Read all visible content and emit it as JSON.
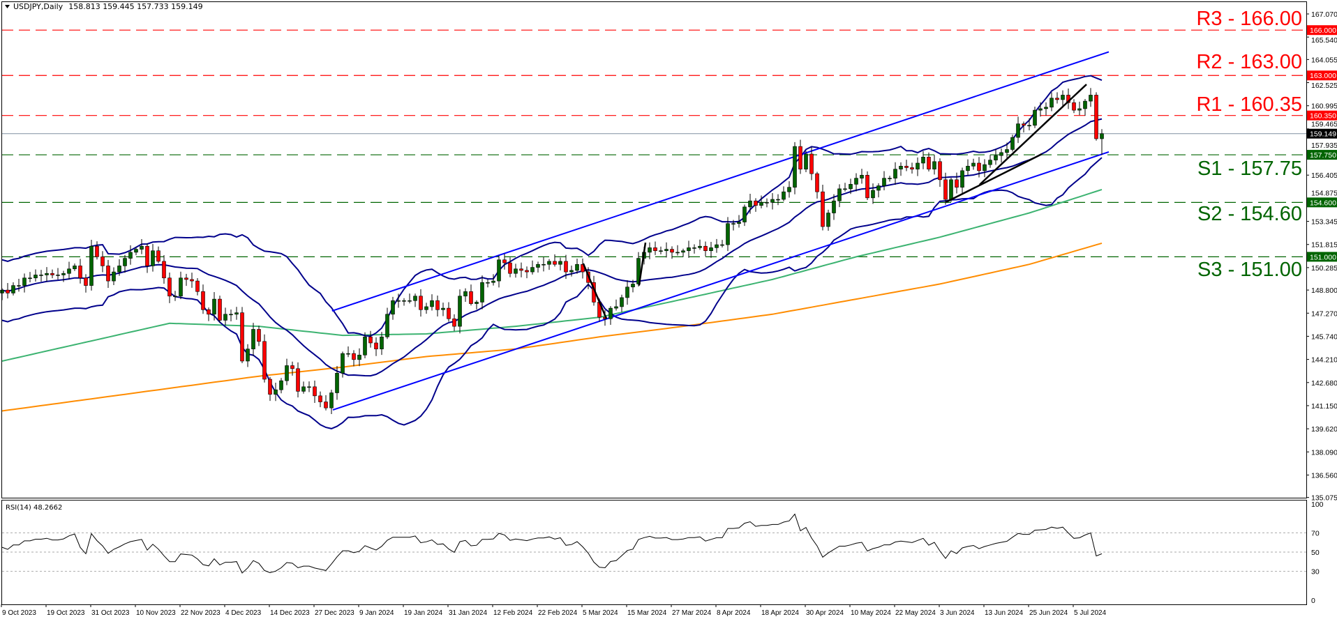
{
  "header": {
    "symbol": "USDJPY,Daily",
    "ohlc": "158.813 159.445 157.733 159.149",
    "menu_icon": "triangle-down-icon"
  },
  "rsi_panel": {
    "label": "RSI(14) 48.2662",
    "levels": [
      30,
      50,
      70
    ],
    "ticks": [
      "100",
      "70",
      "50",
      "30",
      "0"
    ]
  },
  "colors": {
    "up": "#006400",
    "down": "#ff0000",
    "bollinger": "#00008b",
    "channel": "#0000ff",
    "ma_green": "#3cb371",
    "ma_orange": "#ff8c00",
    "resistance": "#ff0000",
    "support": "#006400",
    "trendline": "#000000"
  },
  "chart_data": {
    "type": "candlestick",
    "symbol": "USDJPY",
    "timeframe": "Daily",
    "last_bar": {
      "open": 158.813,
      "high": 159.445,
      "low": 157.733,
      "close": 159.149
    },
    "current_price_label": "159.149",
    "x_tick_labels": [
      "9 Oct 2023",
      "19 Oct 2023",
      "31 Oct 2023",
      "10 Nov 2023",
      "22 Nov 2023",
      "4 Dec 2023",
      "14 Dec 2023",
      "27 Dec 2023",
      "9 Jan 2024",
      "19 Jan 2024",
      "31 Jan 2024",
      "12 Feb 2024",
      "22 Feb 2024",
      "5 Mar 2024",
      "15 Mar 2024",
      "27 Mar 2024",
      "8 Apr 2024",
      "18 Apr 2024",
      "30 Apr 2024",
      "10 May 2024",
      "22 May 2024",
      "3 Jun 2024",
      "13 Jun 2024",
      "25 Jun 2024",
      "5 Jul 2024"
    ],
    "y_tick_labels": [
      "167.070",
      "165.540",
      "164.055",
      "162.525",
      "160.995",
      "159.465",
      "157.935",
      "156.405",
      "154.875",
      "153.345",
      "151.815",
      "150.285",
      "148.800",
      "147.270",
      "145.740",
      "144.210",
      "142.680",
      "141.150",
      "139.620",
      "138.090",
      "136.560",
      "135.075"
    ],
    "ylim": [
      135.075,
      167.07
    ],
    "closes": [
      148.8,
      148.6,
      149.1,
      149.1,
      149.6,
      149.6,
      149.8,
      149.8,
      149.9,
      149.8,
      149.8,
      149.9,
      150.2,
      150.4,
      149.6,
      149.1,
      151.7,
      151.0,
      150.4,
      149.4,
      150.0,
      150.4,
      150.9,
      151.3,
      151.5,
      151.7,
      150.4,
      151.4,
      150.7,
      149.6,
      148.4,
      148.4,
      149.6,
      149.5,
      149.4,
      148.7,
      147.5,
      147.2,
      148.2,
      146.8,
      147.2,
      147.2,
      147.3,
      144.1,
      144.9,
      146.2,
      145.4,
      142.9,
      141.9,
      142.2,
      142.8,
      143.8,
      143.6,
      142.1,
      142.4,
      142.4,
      141.8,
      141.4,
      141.0,
      142.0,
      143.3,
      144.6,
      144.6,
      144.2,
      144.5,
      145.7,
      145.3,
      144.9,
      145.7,
      147.2,
      148.1,
      148.1,
      148.1,
      148.1,
      148.4,
      147.5,
      147.7,
      148.1,
      147.5,
      147.6,
      146.9,
      146.4,
      148.4,
      148.7,
      147.9,
      148.0,
      149.3,
      149.3,
      149.4,
      150.8,
      150.6,
      149.9,
      150.2,
      150.1,
      150.0,
      150.3,
      150.5,
      150.5,
      150.7,
      150.5,
      150.7,
      150.0,
      150.1,
      150.5,
      150.0,
      149.3,
      148.0,
      147.0,
      146.9,
      147.6,
      147.7,
      148.3,
      149.0,
      149.2,
      150.9,
      151.3,
      151.6,
      151.4,
      151.4,
      151.5,
      151.3,
      151.3,
      151.4,
      151.6,
      151.6,
      151.7,
      151.4,
      151.6,
      151.8,
      151.8,
      153.2,
      153.2,
      153.3,
      154.3,
      154.7,
      154.4,
      154.6,
      154.6,
      154.8,
      154.8,
      155.3,
      155.6,
      158.3,
      156.8,
      157.8,
      156.5,
      155.3,
      153.0,
      153.9,
      154.7,
      155.5,
      155.5,
      155.8,
      156.2,
      156.4,
      154.9,
      155.4,
      155.7,
      156.2,
      156.2,
      156.8,
      157.0,
      156.9,
      156.8,
      157.2,
      157.6,
      156.8,
      157.3,
      156.1,
      154.8,
      156.1,
      155.6,
      156.7,
      157.0,
      157.2,
      156.7,
      157.1,
      157.4,
      157.7,
      157.9,
      158.1,
      158.9,
      159.8,
      159.7,
      159.7,
      160.7,
      160.8,
      160.9,
      161.5,
      161.4,
      161.7,
      161.2,
      160.7,
      160.8,
      161.3,
      161.7,
      158.813,
      159.149
    ],
    "indicators": {
      "bollinger": {
        "period": 20,
        "deviations": 2
      },
      "ma_green": [
        [
          0,
          144.1
        ],
        [
          30,
          146.6
        ],
        [
          46,
          146.4
        ],
        [
          61,
          145.8
        ],
        [
          76,
          145.9
        ],
        [
          92,
          146.4
        ],
        [
          107,
          147.0
        ],
        [
          122,
          148.2
        ],
        [
          138,
          149.5
        ],
        [
          153,
          151.0
        ],
        [
          168,
          152.3
        ],
        [
          184,
          153.9
        ],
        [
          197,
          155.45
        ]
      ],
      "ma_orange": [
        [
          0,
          140.8
        ],
        [
          30,
          142.3
        ],
        [
          46,
          143.1
        ],
        [
          61,
          143.7
        ],
        [
          76,
          144.4
        ],
        [
          92,
          144.9
        ],
        [
          107,
          145.7
        ],
        [
          122,
          146.4
        ],
        [
          138,
          147.2
        ],
        [
          153,
          148.2
        ],
        [
          168,
          149.2
        ],
        [
          184,
          150.5
        ],
        [
          197,
          151.9
        ]
      ],
      "rsi_period": 14,
      "rsi_last": 48.2662
    },
    "channel": {
      "upper": [
        [
          59.1,
          147.42
        ],
        [
          198.25,
          164.56
        ]
      ],
      "lower": [
        [
          59.25,
          140.87
        ],
        [
          198.25,
          157.94
        ]
      ]
    },
    "trendlines": [
      [
        [
          104.1,
          150.56
        ],
        [
          108.25,
          146.91
        ]
      ],
      [
        [
          114.1,
          149.1
        ],
        [
          115.25,
          151.94
        ]
      ],
      [
        [
          169.1,
          154.62
        ],
        [
          186.25,
          157.8
        ]
      ],
      [
        [
          175.1,
          155.77
        ],
        [
          194.25,
          162.41
        ]
      ]
    ],
    "levels": [
      {
        "name": "R3",
        "label": "R3 - 166.00",
        "price": 166.0,
        "box": "166.000",
        "kind": "resistance"
      },
      {
        "name": "R2",
        "label": "R2 - 163.00",
        "price": 163.0,
        "box": "163.000",
        "kind": "resistance"
      },
      {
        "name": "R1",
        "label": "R1 - 160.35",
        "price": 160.35,
        "box": "160.350",
        "kind": "resistance"
      },
      {
        "name": "S1",
        "label": "S1 - 157.75",
        "price": 157.75,
        "box": "157.750",
        "kind": "support"
      },
      {
        "name": "S2",
        "label": "S2 - 154.60",
        "price": 154.6,
        "box": "154.600",
        "kind": "support"
      },
      {
        "name": "S3",
        "label": "S3 - 151.00",
        "price": 151.0,
        "box": "151.000",
        "kind": "support"
      }
    ]
  }
}
